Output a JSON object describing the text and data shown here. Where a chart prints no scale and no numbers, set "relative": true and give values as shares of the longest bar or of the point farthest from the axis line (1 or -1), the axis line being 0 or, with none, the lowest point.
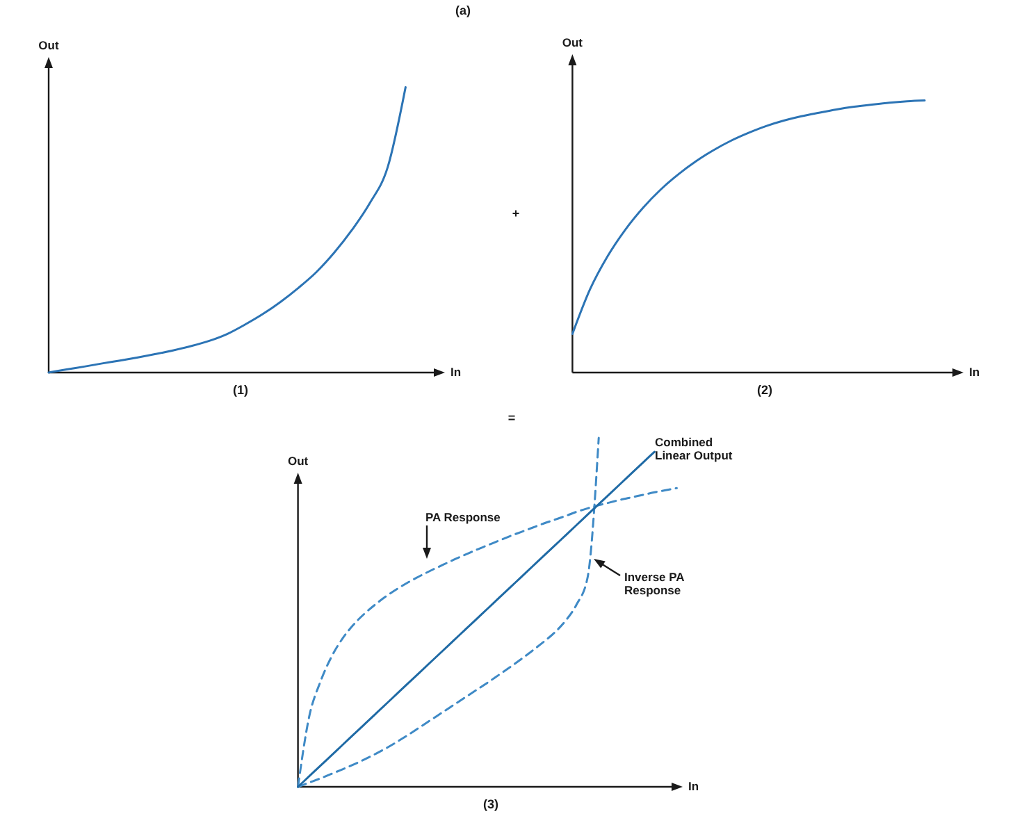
{
  "chart_data": [
    {
      "type": "line",
      "title": "(1)",
      "xlabel": "In",
      "ylabel": "Out",
      "relative": true,
      "annotations": [
        "(a)",
        "+"
      ],
      "categories": [
        null,
        null,
        null,
        null,
        null,
        null,
        null,
        null,
        null,
        null,
        null,
        null,
        null,
        null,
        null,
        null,
        null,
        null,
        null,
        null,
        null
      ],
      "series": [
        {
          "color": "#2c74b5",
          "values": [
            0,
            0.011,
            0.021,
            0.032,
            0.042,
            0.053,
            0.065,
            0.078,
            0.093,
            0.111,
            0.135,
            0.168,
            0.205,
            0.248,
            0.297,
            0.352,
            0.42,
            0.5,
            0.594,
            0.72,
            1
          ]
        }
      ]
    },
    {
      "type": "line",
      "title": "(2)",
      "xlabel": "In",
      "ylabel": "Out",
      "relative": true,
      "categories": [
        null,
        null,
        null,
        null,
        null,
        null,
        null,
        null,
        null,
        null,
        null,
        null,
        null,
        null,
        null,
        null,
        null,
        null,
        null,
        null,
        null
      ],
      "series": [
        {
          "color": "#2c74b5",
          "values": [
            0.142,
            0.306,
            0.428,
            0.525,
            0.605,
            0.672,
            0.728,
            0.776,
            0.817,
            0.852,
            0.881,
            0.906,
            0.926,
            0.942,
            0.955,
            0.967,
            0.977,
            0.985,
            0.992,
            0.997,
            1
          ]
        }
      ]
    },
    {
      "type": "line",
      "title": "(3)",
      "xlabel": "In",
      "ylabel": "Out",
      "relative": true,
      "annotations": [
        "="
      ],
      "categories": [
        null,
        null,
        null,
        null,
        null,
        null,
        null,
        null,
        null,
        null,
        null,
        null,
        null,
        null,
        null,
        null,
        null,
        null,
        null,
        null,
        null,
        null,
        null,
        null,
        null,
        null,
        null,
        null,
        null,
        null,
        null,
        null,
        null,
        null,
        null
      ],
      "series": [
        {
          "name": "PA Response",
          "color": "#3f8ac6",
          "line_style": "dashed",
          "values": [
            0,
            0.2,
            0.3,
            0.372,
            0.425,
            0.465,
            0.497,
            0.524,
            0.548,
            0.569,
            0.588,
            0.605,
            0.621,
            0.636,
            0.651,
            0.665,
            0.679,
            0.692,
            0.705,
            0.718,
            0.73,
            0.742,
            0.754,
            0.765,
            0.776,
            0.788,
            0.798,
            0.807,
            0.815,
            0.823,
            0.83,
            0.837,
            0.844,
            0.85,
            0.856
          ]
        },
        {
          "name": "Inverse PA Response",
          "color": "#3f8ac6",
          "line_style": "dashed",
          "values": [
            0,
            0.012,
            0.024,
            0.037,
            0.05,
            0.064,
            0.079,
            0.095,
            0.112,
            0.131,
            0.151,
            0.172,
            0.193,
            0.214,
            0.235,
            0.256,
            0.277,
            0.298,
            0.32,
            0.342,
            0.365,
            0.389,
            0.414,
            0.441,
            0.475,
            0.522,
            0.6,
            1,
            null,
            null,
            null,
            null,
            null,
            null,
            null
          ]
        },
        {
          "name": "Combined Linear Output",
          "color": "#1f6aa5",
          "line_style": "solid",
          "values": [
            0,
            0.03,
            0.06,
            0.09,
            0.12,
            0.15,
            0.18,
            0.21,
            0.24,
            0.27,
            0.3,
            0.33,
            0.36,
            0.39,
            0.42,
            0.45,
            0.48,
            0.51,
            0.54,
            0.57,
            0.6,
            0.63,
            0.66,
            0.69,
            0.72,
            0.75,
            0.78,
            0.81,
            0.84,
            0.87,
            0.9,
            0.93,
            0.96,
            null,
            null
          ]
        }
      ]
    }
  ]
}
